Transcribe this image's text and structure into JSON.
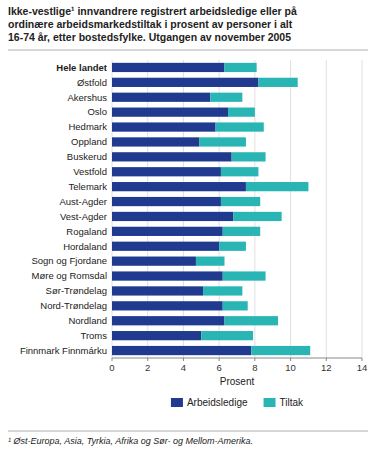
{
  "chart_data": {
    "type": "bar",
    "orientation": "horizontal",
    "stacked": true,
    "title": "Ikke-vestlige¹ innvandrere registrert arbeidsledige eller på\nordinære arbeidsmarkedstiltak i prosent av personer i alt\n16-74 år, etter bostedsfylke. Utgangen av november 2005",
    "categories": [
      "Hele landet",
      "Østfold",
      "Akershus",
      "Oslo",
      "Hedmark",
      "Oppland",
      "Buskerud",
      "Vestfold",
      "Telemark",
      "Aust-Agder",
      "Vest-Agder",
      "Rogaland",
      "Hordaland",
      "Sogn og Fjordane",
      "Møre og Romsdal",
      "Sør-Trøndelag",
      "Nord-Trøndelag",
      "Nordland",
      "Troms",
      "Finnmark Finnmárku"
    ],
    "series": [
      {
        "name": "Arbeidsledige",
        "color": "#1f3a8f",
        "values": [
          6.3,
          8.2,
          5.5,
          6.5,
          5.8,
          4.9,
          6.7,
          6.1,
          7.5,
          6.1,
          6.8,
          6.2,
          6.0,
          4.7,
          6.2,
          5.1,
          6.2,
          6.3,
          5.0,
          7.8
        ]
      },
      {
        "name": "Tiltak",
        "color": "#2ab5b5",
        "values": [
          1.8,
          2.2,
          1.8,
          1.5,
          2.7,
          2.6,
          1.9,
          2.1,
          3.5,
          2.2,
          2.7,
          2.1,
          1.5,
          1.6,
          2.4,
          2.2,
          1.4,
          3.0,
          2.9,
          3.3
        ]
      }
    ],
    "xlabel": "Prosent",
    "xlim": [
      0,
      14
    ],
    "xticks": [
      0,
      2,
      4,
      6,
      8,
      10,
      12,
      14
    ],
    "grid": true,
    "legend": "bottom",
    "footnote": "¹ Øst-Europa, Asia, Tyrkia, Afrika og Sør- og Mellom-Amerika."
  }
}
